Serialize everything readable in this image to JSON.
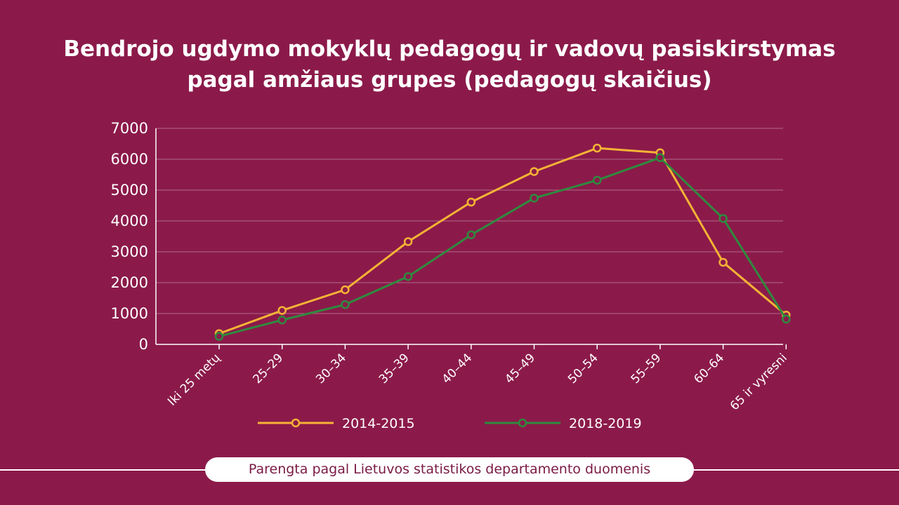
{
  "header": {
    "title_line1": "Bendrojo ugdymo mokyklų pedagogų ir vadovų pasiskirstymas",
    "title_line2": "pagal amžiaus grupes (pedagogų skaičius)"
  },
  "footer": {
    "source": "Parengta pagal Lietuvos statistikos departamento duomenis"
  },
  "colors": {
    "background": "#8b1a4a",
    "series_2014": "#f5b335",
    "series_2018": "#2e8b3e",
    "grid": "#b06a8a"
  },
  "chart_data": {
    "type": "line",
    "title": "Bendrojo ugdymo mokyklų pedagogų ir vadovų pasiskirstymas pagal amžiaus grupes (pedagogų skaičius)",
    "xlabel": "",
    "ylabel": "",
    "ylim": [
      0,
      7000
    ],
    "yticks": [
      "0",
      "1000",
      "2000",
      "3000",
      "4000",
      "5000",
      "6000",
      "7000"
    ],
    "grid": true,
    "legend_position": "bottom",
    "categories": [
      "Iki 25 metų",
      "25–29",
      "30–34",
      "35–39",
      "40–44",
      "45–49",
      "50–54",
      "55–59",
      "60–64",
      "65 ir vyresni"
    ],
    "series": [
      {
        "name": "2014-2015",
        "values": [
          350,
          1100,
          1770,
          3330,
          4610,
          5600,
          6360,
          6210,
          2660,
          950
        ]
      },
      {
        "name": "2018-2019",
        "values": [
          260,
          790,
          1290,
          2200,
          3550,
          4740,
          5320,
          6050,
          4080,
          820
        ]
      }
    ]
  }
}
